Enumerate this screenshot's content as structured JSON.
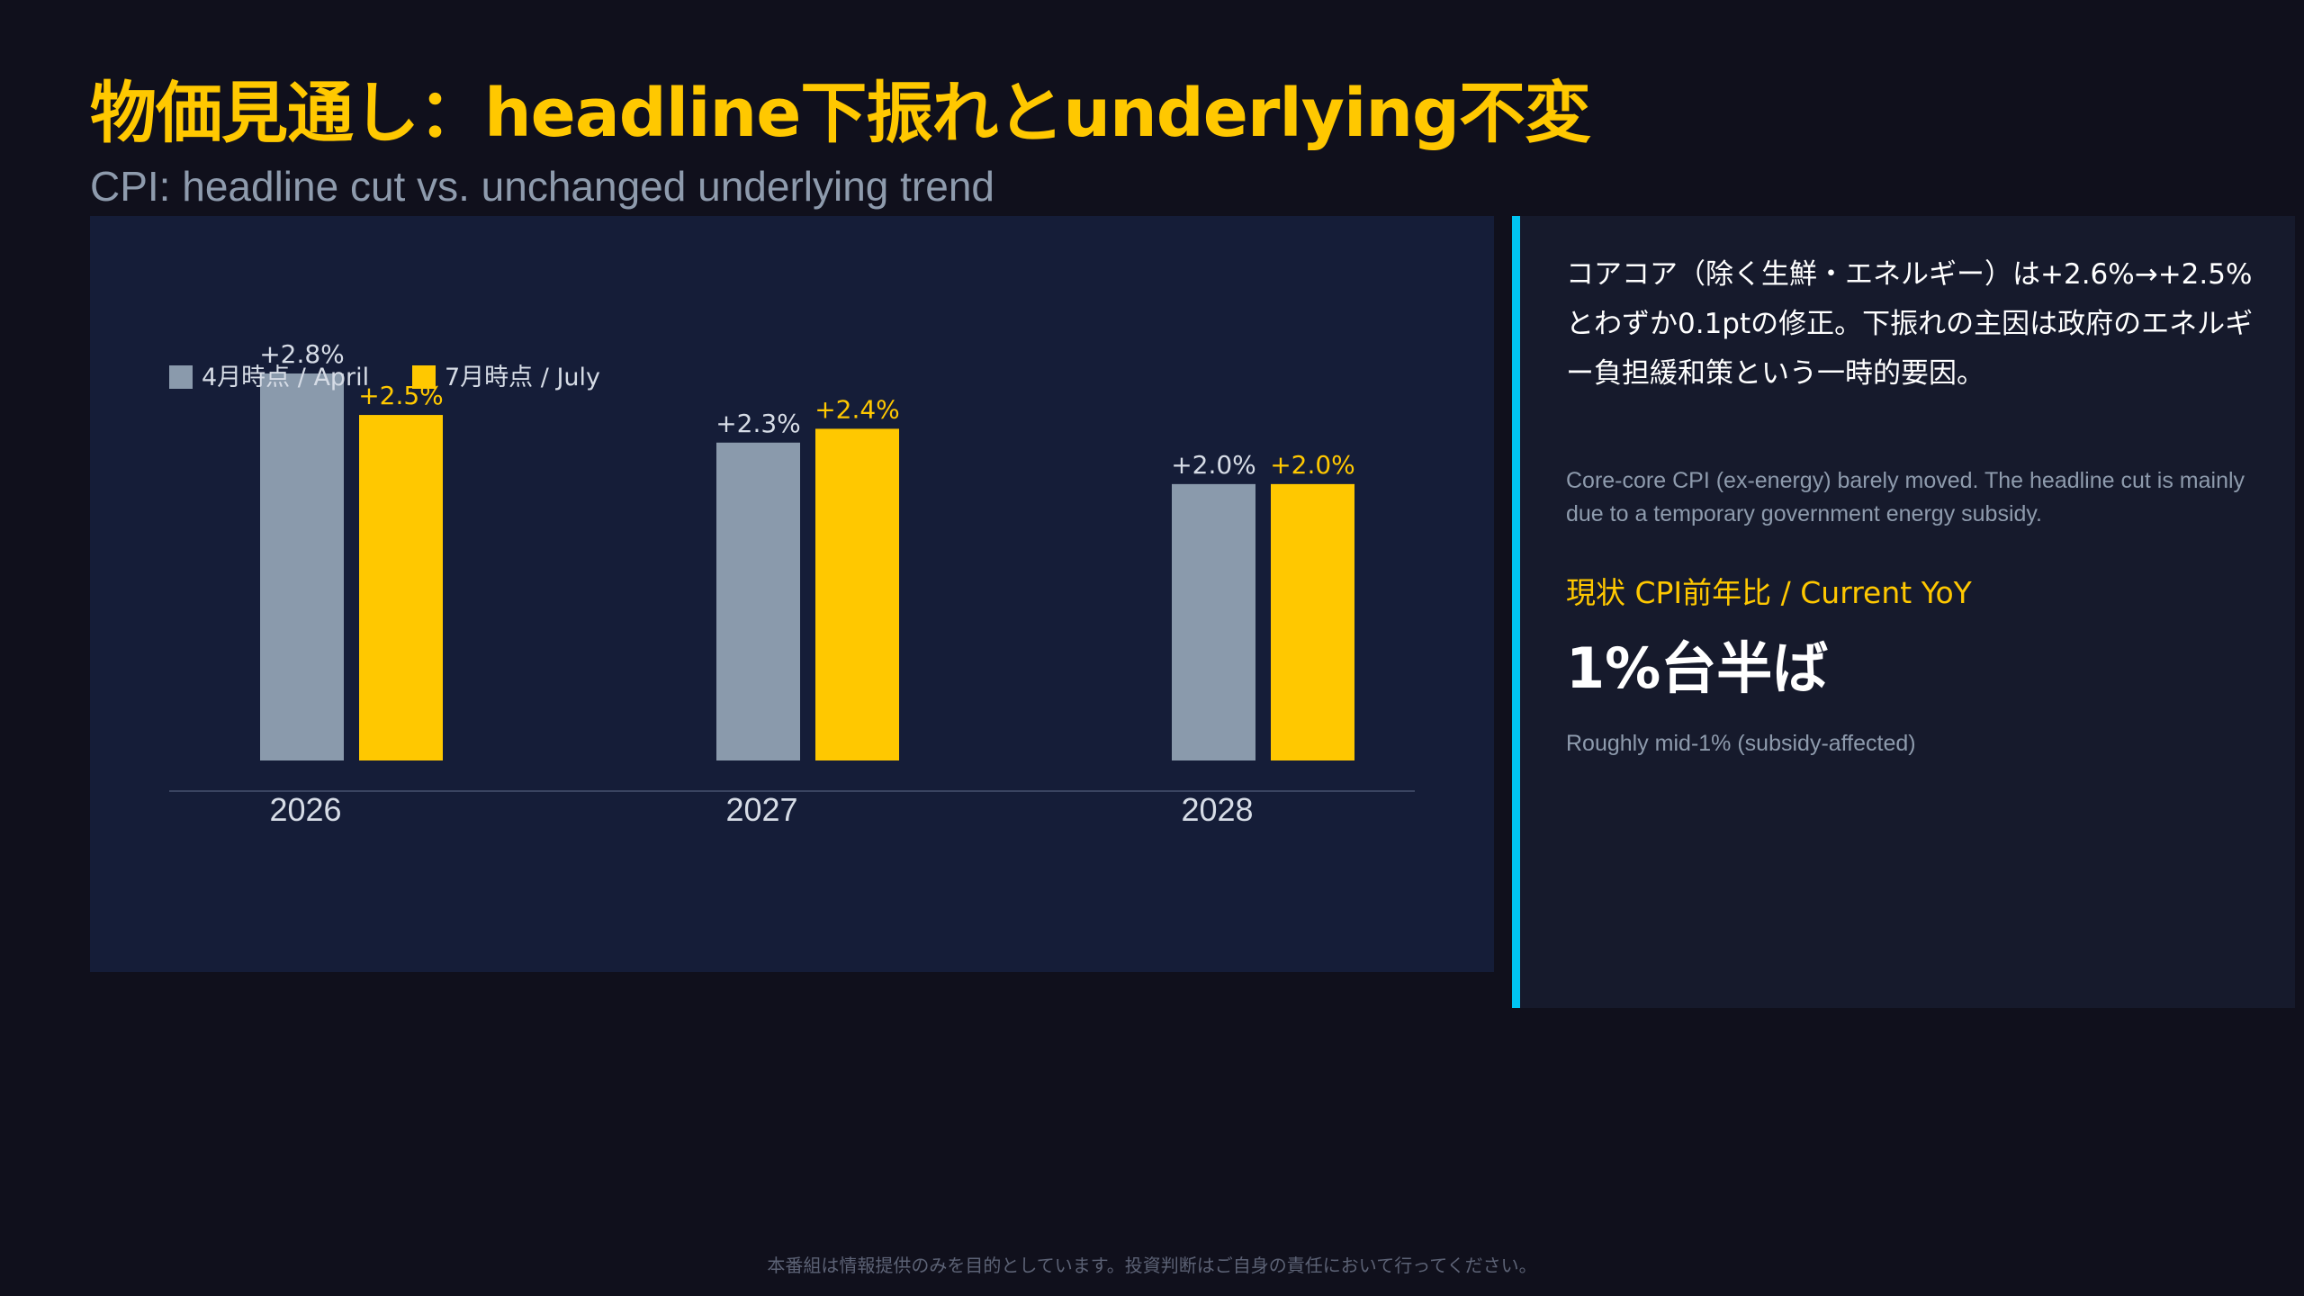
{
  "header": {
    "title": "物価見通し：headline下振れとunderlying不変",
    "subtitle": "CPI: headline cut vs. unchanged underlying trend"
  },
  "colors": {
    "background": "#10101c",
    "accent_yellow": "#ffc800",
    "april_gray": "#8a9aac",
    "panel": "#151d38",
    "side_panel": "#161a2c",
    "side_border": "#00c4f2",
    "muted_text": "#8e9bad"
  },
  "chart_data": {
    "type": "bar",
    "categories": [
      "2026",
      "2027",
      "2028"
    ],
    "series": [
      {
        "name": "4月時点 / April",
        "values": [
          2.8,
          2.3,
          2.0
        ],
        "labels": [
          "+2.8%",
          "+2.3%",
          "+2.0%"
        ],
        "color": "#8a9aac",
        "label_color": "#d6dce6"
      },
      {
        "name": "7月時点 / July",
        "values": [
          2.5,
          2.4,
          2.0
        ],
        "labels": [
          "+2.5%",
          "+2.4%",
          "+2.0%"
        ],
        "color": "#ffc800",
        "label_color": "#ffc800"
      }
    ],
    "title": "",
    "xlabel": "",
    "ylabel": "",
    "ylim": [
      0,
      2.8
    ],
    "grid": false,
    "legend": "top-left"
  },
  "side": {
    "jp_text": "コアコア（除く生鮮・エネルギー）は+2.6%→+2.5%とわずか0.1ptの修正。下振れの主因は政府のエネルギー負担緩和策という一時的要因。",
    "en_text": "Core-core CPI (ex-energy) barely moved. The headline cut is mainly due to a temporary government energy subsidy.",
    "current_label": "現状 CPI前年比 / Current YoY",
    "current_value": "1%台半ば",
    "current_note": "Roughly mid-1% (subsidy-affected)"
  },
  "footer": {
    "disclaimer": "本番組は情報提供のみを目的としています。投資判断はご自身の責任において行ってください。"
  }
}
